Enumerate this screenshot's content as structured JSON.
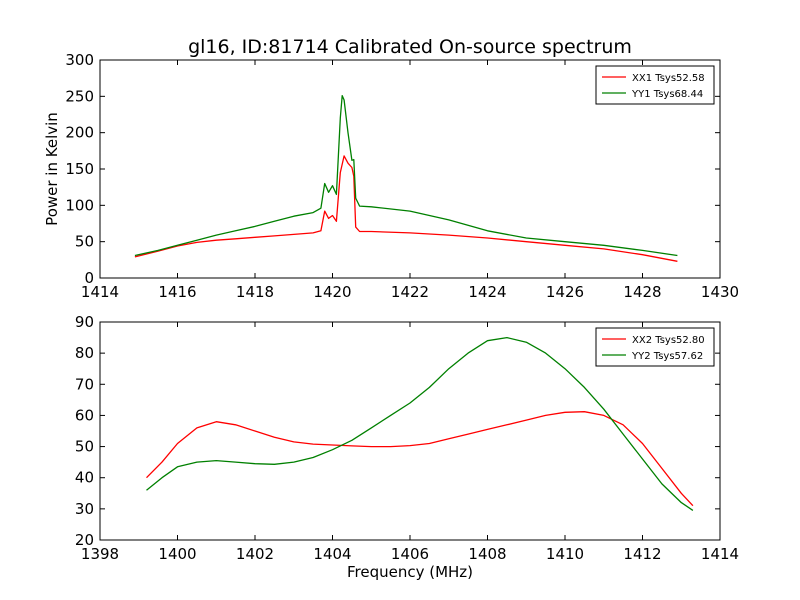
{
  "figure_title": "gl16, ID:81714 Calibrated On-source spectrum",
  "shared_xlabel": "Frequency (MHz)",
  "colors": {
    "red": "#ff0000",
    "green": "#008000",
    "frame": "#000000"
  },
  "chart_data": [
    {
      "type": "line",
      "title": "gl16, ID:81714 Calibrated On-source spectrum",
      "xlabel": "",
      "ylabel": "Power in Kelvin",
      "xlim": [
        1414,
        1430
      ],
      "ylim": [
        0,
        300
      ],
      "xticks": [
        1414,
        1416,
        1418,
        1420,
        1422,
        1424,
        1426,
        1428,
        1430
      ],
      "yticks": [
        0,
        50,
        100,
        150,
        200,
        250,
        300
      ],
      "grid": false,
      "legend_position": "top-right",
      "series": [
        {
          "name": "XX1 Tsys52.58",
          "color": "#ff0000",
          "x": [
            1414.9,
            1415.5,
            1416.0,
            1416.5,
            1417.0,
            1417.5,
            1418.0,
            1418.5,
            1419.0,
            1419.5,
            1419.7,
            1419.8,
            1419.9,
            1420.0,
            1420.1,
            1420.2,
            1420.3,
            1420.4,
            1420.5,
            1420.55,
            1420.6,
            1420.7,
            1421.0,
            1422.0,
            1423.0,
            1424.0,
            1425.0,
            1426.0,
            1427.0,
            1428.0,
            1428.9
          ],
          "y": [
            29,
            37,
            44,
            49,
            52,
            54,
            56,
            58,
            60,
            62,
            65,
            92,
            82,
            86,
            78,
            145,
            168,
            158,
            152,
            140,
            70,
            64,
            64,
            62,
            59,
            55,
            50,
            45,
            40,
            32,
            23
          ]
        },
        {
          "name": "YY1 Tsys68.44",
          "color": "#008000",
          "x": [
            1414.9,
            1415.5,
            1416.0,
            1416.5,
            1417.0,
            1417.5,
            1418.0,
            1418.5,
            1419.0,
            1419.5,
            1419.7,
            1419.8,
            1419.9,
            1420.0,
            1420.1,
            1420.2,
            1420.25,
            1420.3,
            1420.4,
            1420.5,
            1420.55,
            1420.6,
            1420.7,
            1421.0,
            1422.0,
            1423.0,
            1424.0,
            1425.0,
            1426.0,
            1427.0,
            1428.0,
            1428.9
          ],
          "y": [
            31,
            38,
            45,
            52,
            59,
            65,
            71,
            78,
            85,
            90,
            96,
            130,
            118,
            127,
            115,
            220,
            251,
            245,
            200,
            162,
            163,
            110,
            99,
            98,
            92,
            80,
            65,
            55,
            50,
            45,
            38,
            31
          ]
        }
      ]
    },
    {
      "type": "line",
      "title": "",
      "xlabel": "Frequency (MHz)",
      "ylabel": "",
      "xlim": [
        1398,
        1414
      ],
      "ylim": [
        20,
        90
      ],
      "xticks": [
        1398,
        1400,
        1402,
        1404,
        1406,
        1408,
        1410,
        1412,
        1414
      ],
      "yticks": [
        20,
        30,
        40,
        50,
        60,
        70,
        80,
        90
      ],
      "grid": false,
      "legend_position": "top-right",
      "series": [
        {
          "name": "XX2 Tsys52.80",
          "color": "#ff0000",
          "x": [
            1399.2,
            1399.6,
            1400.0,
            1400.5,
            1401.0,
            1401.5,
            1402.0,
            1402.5,
            1403.0,
            1403.5,
            1404.0,
            1404.5,
            1405.0,
            1405.5,
            1406.0,
            1406.5,
            1407.0,
            1407.5,
            1408.0,
            1408.5,
            1409.0,
            1409.5,
            1410.0,
            1410.5,
            1411.0,
            1411.5,
            1412.0,
            1412.5,
            1413.0,
            1413.3
          ],
          "y": [
            40,
            45,
            51,
            56,
            58,
            57,
            55,
            53,
            51.5,
            50.8,
            50.5,
            50.2,
            50,
            50,
            50.3,
            51,
            52.5,
            54,
            55.5,
            57,
            58.5,
            60,
            61,
            61.2,
            60,
            57,
            51,
            43,
            35,
            31
          ]
        },
        {
          "name": "YY2 Tsys57.62",
          "color": "#008000",
          "x": [
            1399.2,
            1399.6,
            1400.0,
            1400.5,
            1401.0,
            1401.5,
            1402.0,
            1402.5,
            1403.0,
            1403.5,
            1404.0,
            1404.5,
            1405.0,
            1405.5,
            1406.0,
            1406.5,
            1407.0,
            1407.5,
            1408.0,
            1408.5,
            1409.0,
            1409.5,
            1410.0,
            1410.5,
            1411.0,
            1411.5,
            1412.0,
            1412.5,
            1413.0,
            1413.3
          ],
          "y": [
            36,
            40,
            43.5,
            45,
            45.5,
            45,
            44.5,
            44.3,
            45,
            46.5,
            49,
            52,
            56,
            60,
            64,
            69,
            75,
            80,
            84,
            85,
            83.5,
            80,
            75,
            69,
            62,
            54,
            46,
            38,
            32,
            29.5
          ]
        }
      ]
    }
  ]
}
